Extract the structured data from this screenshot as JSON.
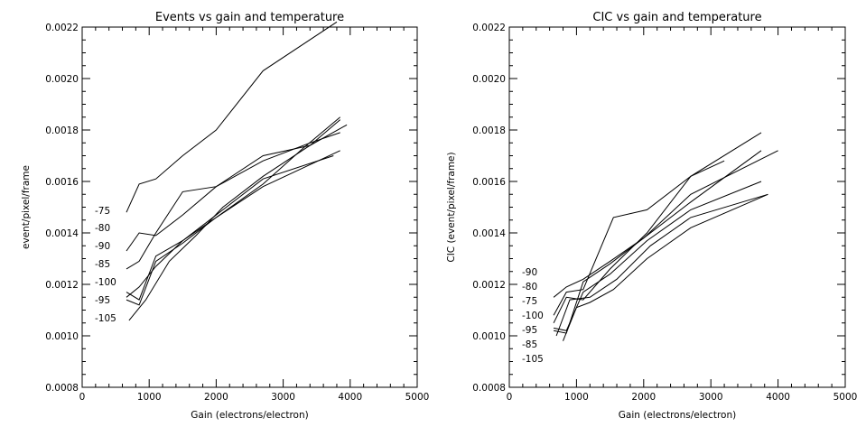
{
  "chart_data": [
    {
      "type": "line",
      "title": "Events vs gain and temperature",
      "xlabel": "Gain (electrons/electron)",
      "ylabel": "event/pixel/frame",
      "xlim": [
        0,
        5000
      ],
      "ylim": [
        0.0008,
        0.0022
      ],
      "xticks": [
        "0",
        "1000",
        "2000",
        "3000",
        "4000",
        "5000"
      ],
      "yticks": [
        "0.0008",
        "0.0010",
        "0.0012",
        "0.0014",
        "0.0016",
        "0.0018",
        "0.0020",
        "0.0022"
      ],
      "series": [
        {
          "name": "-75",
          "x": [
            660,
            850,
            1100,
            1500,
            2000,
            2700,
            3800
          ],
          "y": [
            0.00148,
            0.00159,
            0.00161,
            0.0017,
            0.0018,
            0.00203,
            0.00222
          ]
        },
        {
          "name": "-80",
          "x": [
            660,
            850,
            1100,
            1500,
            2000,
            2700,
            3400,
            3850
          ],
          "y": [
            0.00133,
            0.0014,
            0.00139,
            0.00147,
            0.00158,
            0.00168,
            0.00175,
            0.00179
          ]
        },
        {
          "name": "-90",
          "x": [
            660,
            850,
            1100,
            1500,
            2000,
            2700,
            3400,
            3950
          ],
          "y": [
            0.00126,
            0.00129,
            0.0014,
            0.00156,
            0.00158,
            0.0017,
            0.00174,
            0.00182
          ]
        },
        {
          "name": "-85",
          "x": [
            660,
            850,
            1100,
            1500,
            2000,
            2700,
            3300,
            3850
          ],
          "y": [
            0.00115,
            0.00119,
            0.00127,
            0.00137,
            0.00146,
            0.00159,
            0.00173,
            0.00185
          ]
        },
        {
          "name": "-100",
          "x": [
            660,
            850,
            1100,
            1500,
            2000,
            2700,
            3750
          ],
          "y": [
            0.00117,
            0.00114,
            0.00131,
            0.00137,
            0.00147,
            0.00161,
            0.0017
          ]
        },
        {
          "name": "-95",
          "x": [
            660,
            850,
            1100,
            1500,
            2000,
            2700,
            3850
          ],
          "y": [
            0.00114,
            0.00112,
            0.00129,
            0.00136,
            0.00146,
            0.00158,
            0.00172
          ]
        },
        {
          "name": "-105",
          "x": [
            700,
            950,
            1300,
            1700,
            2100,
            2700,
            3400,
            3850
          ],
          "y": [
            0.00106,
            0.00114,
            0.00129,
            0.00139,
            0.0015,
            0.00162,
            0.00174,
            0.00184
          ]
        }
      ]
    },
    {
      "type": "line",
      "title": "CIC vs gain and temperature",
      "xlabel": "Gain (electrons/electron)",
      "ylabel": "CIC (event/pixel/frame)",
      "xlim": [
        0,
        5000
      ],
      "ylim": [
        0.0008,
        0.0022
      ],
      "xticks": [
        "0",
        "1000",
        "2000",
        "3000",
        "4000",
        "5000"
      ],
      "yticks": [
        "0.0008",
        "0.0010",
        "0.0012",
        "0.0014",
        "0.0016",
        "0.0018",
        "0.0020",
        "0.0022"
      ],
      "series": [
        {
          "name": "-90",
          "x": [
            660,
            850,
            1100,
            1500,
            2000,
            2700,
            3750
          ],
          "y": [
            0.00115,
            0.00119,
            0.00122,
            0.00129,
            0.00138,
            0.00152,
            0.00172
          ]
        },
        {
          "name": "-80",
          "x": [
            660,
            850,
            1100,
            1550,
            2050,
            2700,
            3200
          ],
          "y": [
            0.00108,
            0.00117,
            0.00118,
            0.00146,
            0.00149,
            0.00162,
            0.00168
          ]
        },
        {
          "name": "-75",
          "x": [
            660,
            850,
            1100,
            1500,
            2050,
            2700,
            3750
          ],
          "y": [
            0.00105,
            0.00115,
            0.00114,
            0.00126,
            0.0014,
            0.00162,
            0.00179
          ]
        },
        {
          "name": "-100",
          "x": [
            660,
            850,
            1100,
            1500,
            2000,
            2700,
            4000
          ],
          "y": [
            0.00102,
            0.00101,
            0.00121,
            0.00128,
            0.00138,
            0.00155,
            0.00172
          ]
        },
        {
          "name": "-95",
          "x": [
            660,
            850,
            1100,
            1500,
            2050,
            2700,
            3750
          ],
          "y": [
            0.00103,
            0.00102,
            0.00117,
            0.00124,
            0.00137,
            0.00149,
            0.0016
          ]
        },
        {
          "name": "-85",
          "x": [
            700,
            900,
            1200,
            1600,
            2100,
            2700,
            3850
          ],
          "y": [
            0.001,
            0.00114,
            0.00115,
            0.00122,
            0.00135,
            0.00146,
            0.00155
          ]
        },
        {
          "name": "-105",
          "x": [
            800,
            1000,
            1200,
            1550,
            2050,
            2700,
            3850
          ],
          "y": [
            0.00098,
            0.00111,
            0.00113,
            0.00118,
            0.0013,
            0.00142,
            0.00155
          ]
        }
      ]
    }
  ]
}
